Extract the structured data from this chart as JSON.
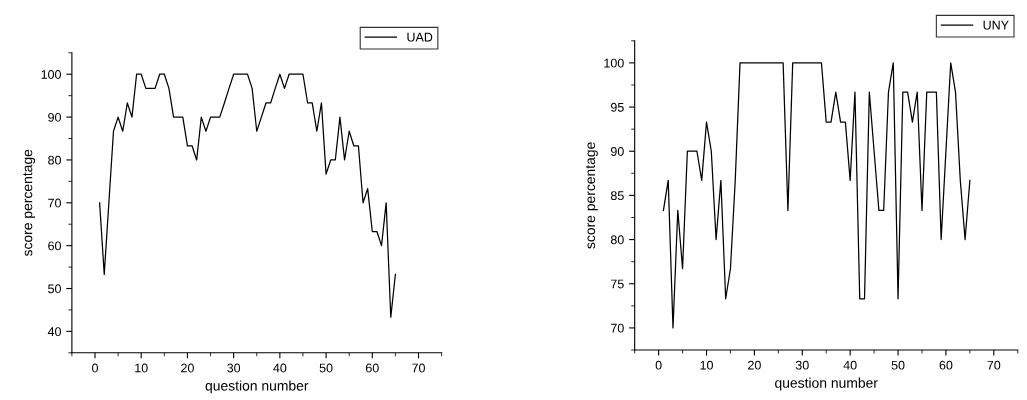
{
  "chart_data": [
    {
      "type": "line",
      "xlabel": "question number",
      "ylabel": "score percentage",
      "legend": "top right",
      "grid": false,
      "marker": "none",
      "line_style": "solid",
      "xlim": [
        -5,
        75
      ],
      "xticks": [
        0,
        10,
        20,
        30,
        40,
        50,
        60,
        70
      ],
      "ylim": [
        35,
        105
      ],
      "yticks": [
        40,
        50,
        60,
        70,
        80,
        90,
        100
      ],
      "x": [
        1,
        2,
        3,
        4,
        5,
        6,
        7,
        8,
        9,
        10,
        11,
        12,
        13,
        14,
        15,
        16,
        17,
        18,
        19,
        20,
        21,
        22,
        23,
        24,
        25,
        26,
        27,
        28,
        29,
        30,
        31,
        32,
        33,
        34,
        35,
        36,
        37,
        38,
        39,
        40,
        41,
        42,
        43,
        44,
        45,
        46,
        47,
        48,
        49,
        50,
        51,
        52,
        53,
        54,
        55,
        56,
        57,
        58,
        59,
        60,
        61,
        62,
        63,
        64,
        65
      ],
      "series": [
        {
          "name": "UAD",
          "color": "#000000",
          "values": [
            70,
            53.3,
            70,
            86.7,
            90,
            86.7,
            93.3,
            90,
            100,
            100,
            96.7,
            96.7,
            96.7,
            100,
            100,
            96.7,
            90,
            90,
            90,
            83.3,
            83.3,
            80,
            90,
            86.7,
            90,
            90,
            90,
            93.3,
            96.7,
            100,
            100,
            100,
            100,
            96.7,
            86.7,
            90,
            93.3,
            93.3,
            96.7,
            100,
            96.7,
            100,
            100,
            100,
            100,
            93.3,
            93.3,
            86.7,
            93.3,
            76.7,
            80,
            80,
            90,
            80,
            86.7,
            83.3,
            83.3,
            70,
            73.3,
            63.3,
            63.3,
            60,
            70,
            43.3,
            53.3
          ]
        }
      ]
    },
    {
      "type": "line",
      "xlabel": "question number",
      "ylabel": "score percentage",
      "legend": "top right",
      "grid": false,
      "marker": "none",
      "line_style": "solid",
      "xlim": [
        -5,
        75
      ],
      "xticks": [
        0,
        10,
        20,
        30,
        40,
        50,
        60,
        70
      ],
      "ylim": [
        67.5,
        102.5
      ],
      "yticks": [
        70,
        75,
        80,
        85,
        90,
        95,
        100
      ],
      "x": [
        1,
        2,
        3,
        4,
        5,
        6,
        7,
        8,
        9,
        10,
        11,
        12,
        13,
        14,
        15,
        16,
        17,
        18,
        19,
        20,
        21,
        22,
        23,
        24,
        25,
        26,
        27,
        28,
        29,
        30,
        31,
        32,
        33,
        34,
        35,
        36,
        37,
        38,
        39,
        40,
        41,
        42,
        43,
        44,
        45,
        46,
        47,
        48,
        49,
        50,
        51,
        52,
        53,
        54,
        55,
        56,
        57,
        58,
        59,
        60,
        61,
        62,
        63,
        64,
        65
      ],
      "series": [
        {
          "name": "UNY",
          "color": "#000000",
          "values": [
            83.3,
            86.7,
            70,
            83.3,
            76.7,
            90,
            90,
            90,
            86.7,
            93.3,
            90,
            80,
            86.7,
            73.3,
            76.7,
            86.7,
            100,
            100,
            100,
            100,
            100,
            100,
            100,
            100,
            100,
            100,
            83.3,
            100,
            100,
            100,
            100,
            100,
            100,
            100,
            93.3,
            93.3,
            96.7,
            93.3,
            93.3,
            86.7,
            96.7,
            73.3,
            73.3,
            96.7,
            90,
            83.3,
            83.3,
            96.7,
            100,
            73.3,
            96.7,
            96.7,
            93.3,
            96.7,
            83.3,
            96.7,
            96.7,
            96.7,
            80,
            90,
            100,
            96.7,
            86.7,
            80,
            86.7
          ]
        }
      ]
    }
  ]
}
